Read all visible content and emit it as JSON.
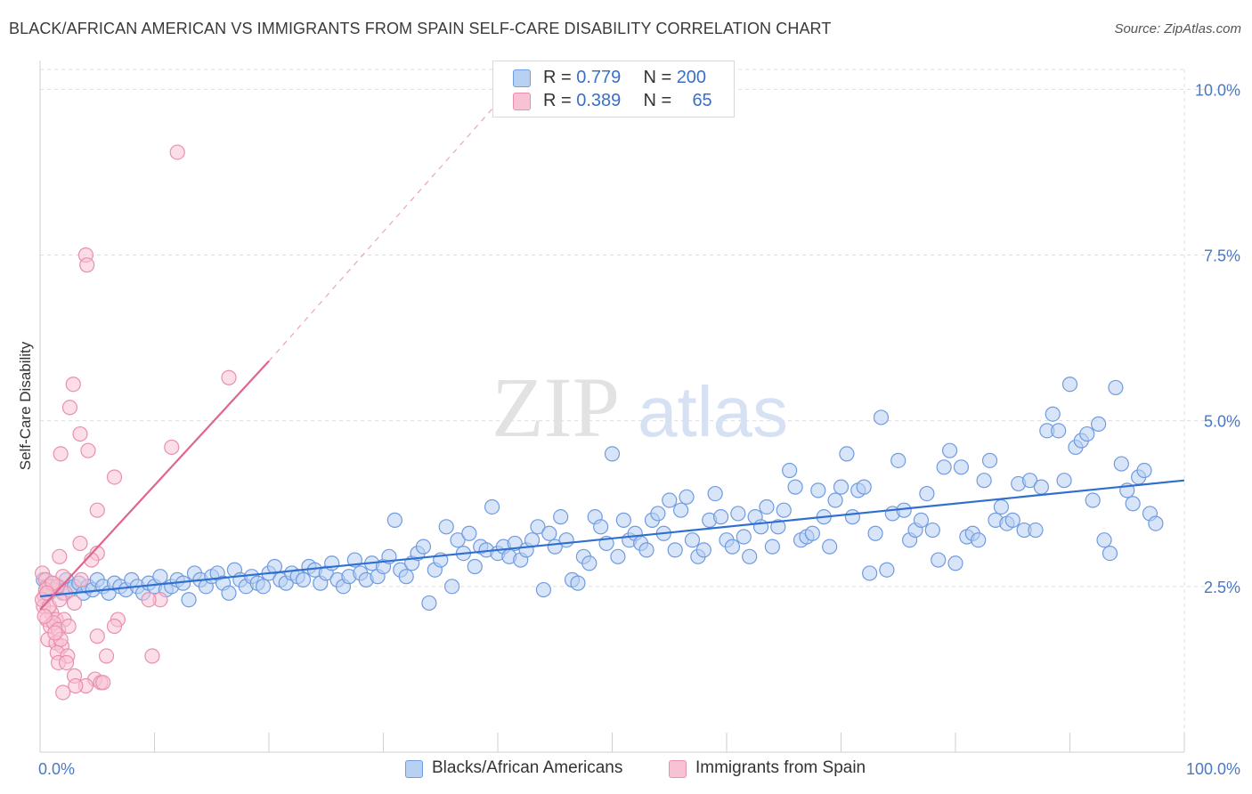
{
  "title": "BLACK/AFRICAN AMERICAN VS IMMIGRANTS FROM SPAIN SELF-CARE DISABILITY CORRELATION CHART",
  "source": "Source: ZipAtlas.com",
  "watermark": {
    "zip": "ZIP",
    "atlas": "atlas"
  },
  "legend": {
    "rows": [
      {
        "r_label": "R =",
        "r_value": "0.779",
        "n_label": "N =",
        "n_value": "200"
      },
      {
        "r_label": "R =",
        "r_value": "0.389",
        "n_label": "N =",
        "n_value": "65"
      }
    ]
  },
  "colors": {
    "blue_fill": "#b8d0f2",
    "blue_stroke": "#6f9be0",
    "blue_line": "#2f6fd0",
    "pink_fill": "#f7c2d3",
    "pink_stroke": "#ea8fae",
    "pink_line": "#e0648f",
    "tick_text": "#4a78c2",
    "grid": "#dddddd"
  },
  "chart_data": {
    "type": "scatter",
    "title": "BLACK/AFRICAN AMERICAN VS IMMIGRANTS FROM SPAIN SELF-CARE DISABILITY CORRELATION CHART",
    "xlabel": "",
    "ylabel": "Self-Care Disability",
    "xlim": [
      0,
      100
    ],
    "ylim": [
      0,
      10.3
    ],
    "x_tick_labels": [
      "0.0%",
      "100.0%"
    ],
    "y_ticks": [
      2.5,
      5.0,
      7.5,
      10.0
    ],
    "y_tick_labels": [
      "2.5%",
      "5.0%",
      "7.5%",
      "10.0%"
    ],
    "grid": true,
    "series": [
      {
        "name": "Blacks/African Americans",
        "trend": {
          "x0": 0,
          "y0": 2.35,
          "x1": 100,
          "y1": 4.1
        },
        "points": [
          [
            0.3,
            2.6
          ],
          [
            0.6,
            2.5
          ],
          [
            0.8,
            2.4
          ],
          [
            1.0,
            2.55
          ],
          [
            1.3,
            2.45
          ],
          [
            1.6,
            2.5
          ],
          [
            2.0,
            2.4
          ],
          [
            2.3,
            2.6
          ],
          [
            2.6,
            2.45
          ],
          [
            3.0,
            2.5
          ],
          [
            3.4,
            2.55
          ],
          [
            3.8,
            2.4
          ],
          [
            4.2,
            2.5
          ],
          [
            4.6,
            2.45
          ],
          [
            5.0,
            2.6
          ],
          [
            5.5,
            2.5
          ],
          [
            6.0,
            2.4
          ],
          [
            6.5,
            2.55
          ],
          [
            7.0,
            2.5
          ],
          [
            7.5,
            2.45
          ],
          [
            8.0,
            2.6
          ],
          [
            8.5,
            2.5
          ],
          [
            9.0,
            2.4
          ],
          [
            9.5,
            2.55
          ],
          [
            10.0,
            2.5
          ],
          [
            10.5,
            2.65
          ],
          [
            11.0,
            2.45
          ],
          [
            11.5,
            2.5
          ],
          [
            12.0,
            2.6
          ],
          [
            12.5,
            2.55
          ],
          [
            13.0,
            2.3
          ],
          [
            13.5,
            2.7
          ],
          [
            14.0,
            2.6
          ],
          [
            14.5,
            2.5
          ],
          [
            15.0,
            2.65
          ],
          [
            15.5,
            2.7
          ],
          [
            16.0,
            2.55
          ],
          [
            16.5,
            2.4
          ],
          [
            17.0,
            2.75
          ],
          [
            17.5,
            2.6
          ],
          [
            18.0,
            2.5
          ],
          [
            18.5,
            2.65
          ],
          [
            19.0,
            2.55
          ],
          [
            19.5,
            2.5
          ],
          [
            20.0,
            2.7
          ],
          [
            20.5,
            2.8
          ],
          [
            21.0,
            2.6
          ],
          [
            21.5,
            2.55
          ],
          [
            22.0,
            2.7
          ],
          [
            22.5,
            2.65
          ],
          [
            23.0,
            2.6
          ],
          [
            23.5,
            2.8
          ],
          [
            24.0,
            2.75
          ],
          [
            24.5,
            2.55
          ],
          [
            25.0,
            2.7
          ],
          [
            25.5,
            2.85
          ],
          [
            26.0,
            2.6
          ],
          [
            26.5,
            2.5
          ],
          [
            27.0,
            2.65
          ],
          [
            27.5,
            2.9
          ],
          [
            28.0,
            2.7
          ],
          [
            28.5,
            2.6
          ],
          [
            29.0,
            2.85
          ],
          [
            29.5,
            2.65
          ],
          [
            30.0,
            2.8
          ],
          [
            30.5,
            2.95
          ],
          [
            31.0,
            3.5
          ],
          [
            31.5,
            2.75
          ],
          [
            32.0,
            2.65
          ],
          [
            32.5,
            2.85
          ],
          [
            33.0,
            3.0
          ],
          [
            33.5,
            3.1
          ],
          [
            34.0,
            2.25
          ],
          [
            34.5,
            2.75
          ],
          [
            35.0,
            2.9
          ],
          [
            35.5,
            3.4
          ],
          [
            36.0,
            2.5
          ],
          [
            36.5,
            3.2
          ],
          [
            37.0,
            3.0
          ],
          [
            37.5,
            3.3
          ],
          [
            38.0,
            2.8
          ],
          [
            38.5,
            3.1
          ],
          [
            39.0,
            3.05
          ],
          [
            39.5,
            3.7
          ],
          [
            40.0,
            3.0
          ],
          [
            40.5,
            3.1
          ],
          [
            41.0,
            2.95
          ],
          [
            41.5,
            3.15
          ],
          [
            42.0,
            2.9
          ],
          [
            42.5,
            3.05
          ],
          [
            43.0,
            3.2
          ],
          [
            43.5,
            3.4
          ],
          [
            44.0,
            2.45
          ],
          [
            44.5,
            3.3
          ],
          [
            45.0,
            3.1
          ],
          [
            45.5,
            3.55
          ],
          [
            46.0,
            3.2
          ],
          [
            46.5,
            2.6
          ],
          [
            47.0,
            2.55
          ],
          [
            47.5,
            2.95
          ],
          [
            48.0,
            2.85
          ],
          [
            48.5,
            3.55
          ],
          [
            49.0,
            3.4
          ],
          [
            49.5,
            3.15
          ],
          [
            50.0,
            4.5
          ],
          [
            50.5,
            2.95
          ],
          [
            51.0,
            3.5
          ],
          [
            51.5,
            3.2
          ],
          [
            52.0,
            3.3
          ],
          [
            52.5,
            3.15
          ],
          [
            53.0,
            3.05
          ],
          [
            53.5,
            3.5
          ],
          [
            54.0,
            3.6
          ],
          [
            54.5,
            3.3
          ],
          [
            55.0,
            3.8
          ],
          [
            55.5,
            3.05
          ],
          [
            56.0,
            3.65
          ],
          [
            56.5,
            3.85
          ],
          [
            57.0,
            3.2
          ],
          [
            57.5,
            2.95
          ],
          [
            58.0,
            3.05
          ],
          [
            58.5,
            3.5
          ],
          [
            59.0,
            3.9
          ],
          [
            59.5,
            3.55
          ],
          [
            60.0,
            3.2
          ],
          [
            60.5,
            3.1
          ],
          [
            61.0,
            3.6
          ],
          [
            61.5,
            3.25
          ],
          [
            62.0,
            2.95
          ],
          [
            62.5,
            3.55
          ],
          [
            63.0,
            3.4
          ],
          [
            63.5,
            3.7
          ],
          [
            64.0,
            3.1
          ],
          [
            64.5,
            3.4
          ],
          [
            65.0,
            3.65
          ],
          [
            65.5,
            4.25
          ],
          [
            66.0,
            4.0
          ],
          [
            66.5,
            3.2
          ],
          [
            67.0,
            3.25
          ],
          [
            67.5,
            3.3
          ],
          [
            68.0,
            3.95
          ],
          [
            68.5,
            3.55
          ],
          [
            69.0,
            3.1
          ],
          [
            69.5,
            3.8
          ],
          [
            70.0,
            4.0
          ],
          [
            70.5,
            4.5
          ],
          [
            71.0,
            3.55
          ],
          [
            71.5,
            3.95
          ],
          [
            72.0,
            4.0
          ],
          [
            72.5,
            2.7
          ],
          [
            73.0,
            3.3
          ],
          [
            73.5,
            5.05
          ],
          [
            74.0,
            2.75
          ],
          [
            74.5,
            3.6
          ],
          [
            75.0,
            4.4
          ],
          [
            75.5,
            3.65
          ],
          [
            76.0,
            3.2
          ],
          [
            76.5,
            3.35
          ],
          [
            77.0,
            3.5
          ],
          [
            77.5,
            3.9
          ],
          [
            78.0,
            3.35
          ],
          [
            78.5,
            2.9
          ],
          [
            79.0,
            4.3
          ],
          [
            79.5,
            4.55
          ],
          [
            80.0,
            2.85
          ],
          [
            80.5,
            4.3
          ],
          [
            81.0,
            3.25
          ],
          [
            81.5,
            3.3
          ],
          [
            82.0,
            3.2
          ],
          [
            82.5,
            4.1
          ],
          [
            83.0,
            4.4
          ],
          [
            83.5,
            3.5
          ],
          [
            84.0,
            3.7
          ],
          [
            84.5,
            3.45
          ],
          [
            85.0,
            3.5
          ],
          [
            85.5,
            4.05
          ],
          [
            86.0,
            3.35
          ],
          [
            86.5,
            4.1
          ],
          [
            87.0,
            3.35
          ],
          [
            87.5,
            4.0
          ],
          [
            88.0,
            4.85
          ],
          [
            88.5,
            5.1
          ],
          [
            89.0,
            4.85
          ],
          [
            89.5,
            4.1
          ],
          [
            90.0,
            5.55
          ],
          [
            90.5,
            4.6
          ],
          [
            91.0,
            4.7
          ],
          [
            91.5,
            4.8
          ],
          [
            92.0,
            3.8
          ],
          [
            92.5,
            4.95
          ],
          [
            93.0,
            3.2
          ],
          [
            93.5,
            3.0
          ],
          [
            94.0,
            5.5
          ],
          [
            94.5,
            4.35
          ],
          [
            95.0,
            3.95
          ],
          [
            95.5,
            3.75
          ],
          [
            96.0,
            4.15
          ],
          [
            96.5,
            4.25
          ],
          [
            97.0,
            3.6
          ],
          [
            97.5,
            3.45
          ]
        ]
      },
      {
        "name": "Immigrants from Spain",
        "trend": {
          "x0": 0,
          "y0": 2.15,
          "x1": 20,
          "y1": 5.9,
          "dash_to_x": 40,
          "dash_to_y": 9.8
        },
        "points": [
          [
            12.0,
            9.05
          ],
          [
            4.0,
            7.5
          ],
          [
            4.1,
            7.35
          ],
          [
            16.5,
            5.65
          ],
          [
            2.9,
            5.55
          ],
          [
            2.6,
            5.2
          ],
          [
            3.5,
            4.8
          ],
          [
            11.5,
            4.6
          ],
          [
            1.8,
            4.5
          ],
          [
            4.2,
            4.55
          ],
          [
            6.5,
            4.15
          ],
          [
            5.0,
            3.65
          ],
          [
            3.5,
            3.15
          ],
          [
            1.7,
            2.95
          ],
          [
            5.0,
            3.0
          ],
          [
            4.5,
            2.9
          ],
          [
            0.2,
            2.7
          ],
          [
            0.5,
            2.6
          ],
          [
            2.0,
            2.65
          ],
          [
            0.8,
            2.5
          ],
          [
            1.2,
            2.45
          ],
          [
            2.2,
            2.4
          ],
          [
            0.4,
            2.35
          ],
          [
            1.5,
            2.5
          ],
          [
            3.0,
            2.25
          ],
          [
            0.3,
            2.2
          ],
          [
            1.0,
            2.1
          ],
          [
            10.5,
            2.3
          ],
          [
            9.5,
            2.3
          ],
          [
            0.6,
            2.0
          ],
          [
            1.4,
            2.0
          ],
          [
            2.1,
            2.0
          ],
          [
            0.9,
            1.9
          ],
          [
            6.8,
            2.0
          ],
          [
            6.5,
            1.9
          ],
          [
            1.2,
            1.95
          ],
          [
            1.6,
            1.85
          ],
          [
            0.7,
            1.7
          ],
          [
            1.4,
            1.65
          ],
          [
            1.9,
            1.6
          ],
          [
            1.8,
            1.7
          ],
          [
            5.0,
            1.75
          ],
          [
            1.5,
            1.5
          ],
          [
            2.4,
            1.45
          ],
          [
            5.8,
            1.45
          ],
          [
            9.8,
            1.45
          ],
          [
            1.6,
            1.35
          ],
          [
            2.3,
            1.35
          ],
          [
            3.0,
            1.15
          ],
          [
            4.8,
            1.1
          ],
          [
            5.3,
            1.05
          ],
          [
            5.5,
            1.05
          ],
          [
            4.0,
            1.0
          ],
          [
            3.1,
            1.0
          ],
          [
            2.0,
            0.9
          ],
          [
            0.5,
            2.45
          ],
          [
            1.1,
            2.55
          ],
          [
            0.2,
            2.3
          ],
          [
            0.8,
            2.2
          ],
          [
            1.7,
            2.3
          ],
          [
            2.5,
            1.9
          ],
          [
            0.4,
            2.05
          ],
          [
            1.3,
            1.8
          ],
          [
            3.6,
            2.6
          ],
          [
            0.6,
            2.4
          ]
        ]
      }
    ]
  },
  "bottom_legend": [
    {
      "label": "Blacks/African Americans"
    },
    {
      "label": "Immigrants from Spain"
    }
  ]
}
